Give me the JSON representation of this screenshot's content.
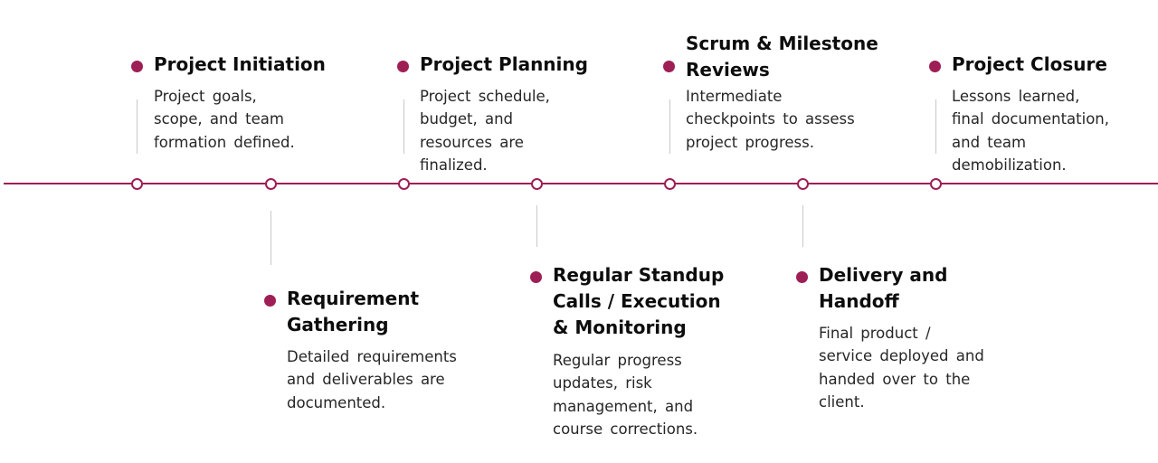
{
  "colors": {
    "accent": "#9e1f55",
    "connector": "#c8c8c8",
    "title": "#0d0d0d",
    "text": "#262626"
  },
  "milestones": [
    {
      "title": "Project Initiation",
      "description": "Project goals,\nscope, and team\nformation defined."
    },
    {
      "title": "Requirement\nGathering",
      "description": "Detailed requirements\nand deliverables are\ndocumented."
    },
    {
      "title": "Project Planning",
      "description": "Project schedule,\nbudget, and\nresources are\nfinalized."
    },
    {
      "title": "Regular Standup\nCalls / Execution\n& Monitoring",
      "description": "Regular progress\nupdates, risk\nmanagement, and\ncourse corrections."
    },
    {
      "title": "Scrum & Milestone\nReviews",
      "description": "Intermediate\ncheckpoints to assess\nproject progress."
    },
    {
      "title": "Delivery and\nHandoff",
      "description": "Final product /\nservice deployed and\nhanded over to the\nclient."
    },
    {
      "title": "Project Closure",
      "description": "Lessons learned,\nfinal documentation,\nand team\ndemobilization."
    }
  ]
}
